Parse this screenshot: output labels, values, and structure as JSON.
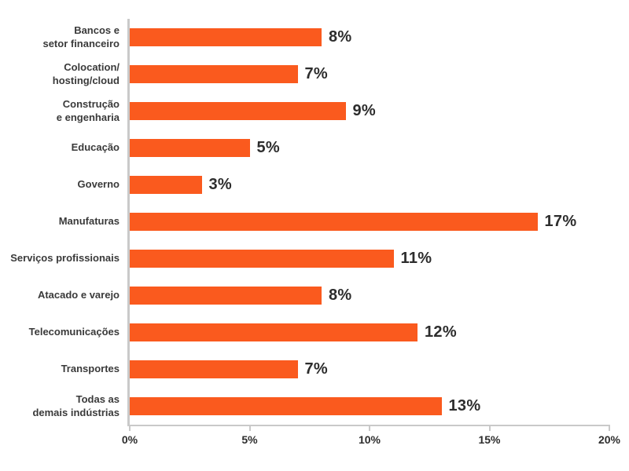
{
  "chart_data": {
    "type": "bar",
    "orientation": "horizontal",
    "title": "",
    "xlabel": "",
    "ylabel": "",
    "xlim": [
      0,
      20
    ],
    "grid": false,
    "legend": false,
    "categories": [
      "Bancos e\nsetor financeiro",
      "Colocation/\nhosting/cloud",
      "Construção\ne engenharia",
      "Educação",
      "Governo",
      "Manufaturas",
      "Serviços profissionais",
      "Atacado e varejo",
      "Telecomunicações",
      "Transportes",
      "Todas as\ndemais indústrias"
    ],
    "values": [
      8,
      7,
      9,
      5,
      3,
      17,
      11,
      8,
      12,
      7,
      13
    ],
    "value_labels": [
      "8%",
      "7%",
      "9%",
      "5%",
      "3%",
      "17%",
      "11%",
      "8%",
      "12%",
      "7%",
      "13%"
    ],
    "x_ticks": [
      0,
      5,
      10,
      15,
      20
    ],
    "x_tick_labels": [
      "0%",
      "5%",
      "10%",
      "15%",
      "20%"
    ],
    "colors": {
      "bar": "#fa5a1e",
      "category_label": "#3a3a3a",
      "value_label": "#2d2d2d",
      "axis": "#c9c9c9",
      "background": "#ffffff"
    }
  }
}
